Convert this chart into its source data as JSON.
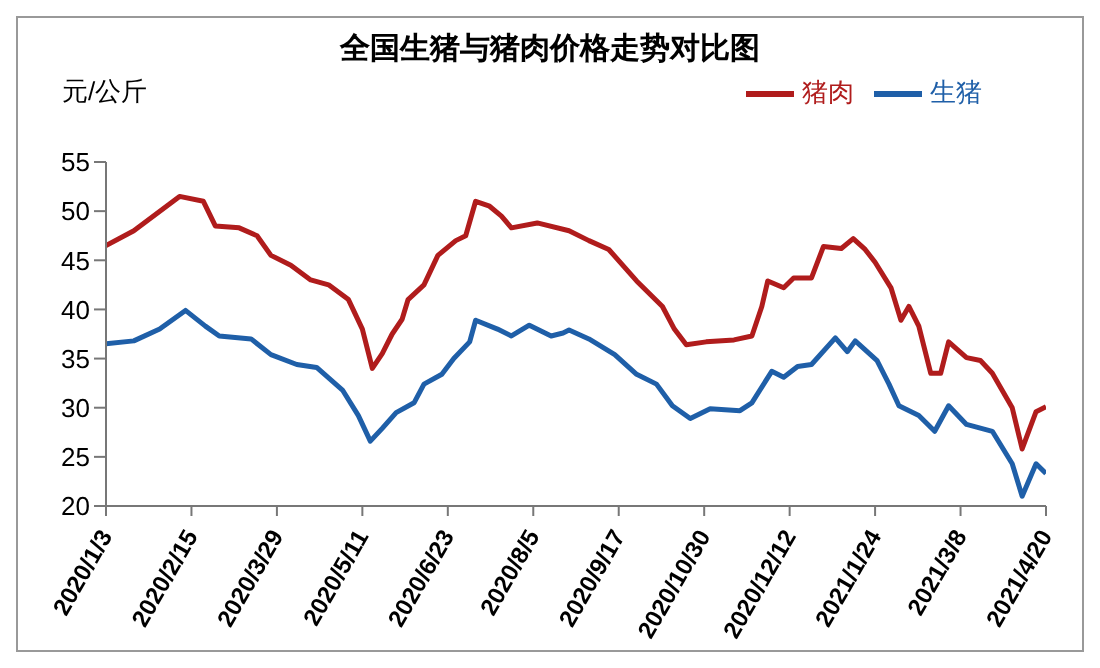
{
  "chart_data": {
    "type": "line",
    "title": "全国生猪与猪肉价格走势对比图",
    "ylabel": "元/公斤",
    "xlim": [
      "2020-01-03",
      "2021-04-20"
    ],
    "xticks": [
      {
        "value": "2020-01-03",
        "label": "2020/1/3"
      },
      {
        "value": "2020-02-15",
        "label": "2020/2/15"
      },
      {
        "value": "2020-03-29",
        "label": "2020/3/29"
      },
      {
        "value": "2020-05-11",
        "label": "2020/5/11"
      },
      {
        "value": "2020-06-23",
        "label": "2020/6/23"
      },
      {
        "value": "2020-08-05",
        "label": "2020/8/5"
      },
      {
        "value": "2020-09-17",
        "label": "2020/9/17"
      },
      {
        "value": "2020-10-30",
        "label": "2020/10/30"
      },
      {
        "value": "2020-12-12",
        "label": "2020/12/12"
      },
      {
        "value": "2021-01-24",
        "label": "2021/1/24"
      },
      {
        "value": "2021-03-08",
        "label": "2021/3/8"
      },
      {
        "value": "2021-04-20",
        "label": "2021/4/20"
      }
    ],
    "ylim": [
      20,
      55
    ],
    "yticks": [
      20,
      25,
      30,
      35,
      40,
      45,
      50,
      55
    ],
    "grid": false,
    "legend": "top right",
    "marker": "none",
    "line_style": "solid",
    "series": [
      {
        "name": "生猪",
        "color": "#1f5fa8",
        "x": [
          "2020-01-03",
          "2020-01-17",
          "2020-01-30",
          "2020-02-12",
          "2020-02-22",
          "2020-02-29",
          "2020-03-16",
          "2020-03-26",
          "2020-04-08",
          "2020-04-18",
          "2020-05-01",
          "2020-05-09",
          "2020-05-15",
          "2020-05-21",
          "2020-05-28",
          "2020-06-06",
          "2020-06-11",
          "2020-06-20",
          "2020-06-26",
          "2020-07-04",
          "2020-07-07",
          "2020-07-18",
          "2020-07-25",
          "2020-08-03",
          "2020-08-14",
          "2020-08-20",
          "2020-08-23",
          "2020-09-02",
          "2020-09-15",
          "2020-09-26",
          "2020-10-06",
          "2020-10-14",
          "2020-10-23",
          "2020-11-02",
          "2020-11-17",
          "2020-11-23",
          "2020-12-03",
          "2020-12-09",
          "2020-12-16",
          "2020-12-23",
          "2021-01-04",
          "2021-01-10",
          "2021-01-14",
          "2021-01-25",
          "2021-01-31",
          "2021-02-05",
          "2021-02-15",
          "2021-02-23",
          "2021-03-02",
          "2021-03-11",
          "2021-03-24",
          "2021-04-03",
          "2021-04-08",
          "2021-04-15",
          "2021-04-20"
        ],
        "values": [
          36.5,
          36.8,
          38,
          39.9,
          38.3,
          37.3,
          37,
          35.4,
          34.4,
          34.1,
          31.8,
          29.2,
          26.6,
          27.9,
          29.5,
          30.5,
          32.4,
          33.4,
          35,
          36.7,
          38.9,
          38,
          37.3,
          38.4,
          37.3,
          37.6,
          37.9,
          37,
          35.4,
          33.4,
          32.4,
          30.2,
          28.9,
          29.9,
          29.7,
          30.5,
          33.7,
          33.1,
          34.2,
          34.4,
          37.1,
          35.7,
          36.8,
          34.8,
          32.4,
          30.2,
          29.2,
          27.6,
          30.2,
          28.3,
          27.6,
          24.3,
          21,
          24.3,
          23.3
        ]
      },
      {
        "name": "猪肉",
        "color": "#b01c1c",
        "x": [
          "2020-01-03",
          "2020-01-17",
          "2020-02-09",
          "2020-02-21",
          "2020-02-27",
          "2020-03-10",
          "2020-03-19",
          "2020-03-26",
          "2020-04-05",
          "2020-04-15",
          "2020-04-24",
          "2020-05-04",
          "2020-05-11",
          "2020-05-16",
          "2020-05-21",
          "2020-05-26",
          "2020-05-31",
          "2020-06-03",
          "2020-06-11",
          "2020-06-18",
          "2020-06-27",
          "2020-07-02",
          "2020-07-07",
          "2020-07-14",
          "2020-07-20",
          "2020-07-25",
          "2020-08-07",
          "2020-08-23",
          "2020-09-02",
          "2020-09-12",
          "2020-09-26",
          "2020-10-09",
          "2020-10-15",
          "2020-10-21",
          "2020-10-31",
          "2020-11-14",
          "2020-11-23",
          "2020-11-28",
          "2020-12-01",
          "2020-12-09",
          "2020-12-14",
          "2020-12-23",
          "2020-12-29",
          "2021-01-07",
          "2021-01-13",
          "2021-01-19",
          "2021-01-24",
          "2021-02-01",
          "2021-02-06",
          "2021-02-10",
          "2021-02-15",
          "2021-02-21",
          "2021-02-26",
          "2021-03-02",
          "2021-03-11",
          "2021-03-18",
          "2021-03-24",
          "2021-04-03",
          "2021-04-08",
          "2021-04-15",
          "2021-04-20"
        ],
        "values": [
          46.5,
          48,
          51.5,
          51,
          48.5,
          48.3,
          47.5,
          45.5,
          44.5,
          43,
          42.5,
          41,
          38,
          34,
          35.5,
          37.5,
          39,
          41,
          42.5,
          45.5,
          47,
          47.5,
          51,
          50.5,
          49.5,
          48.3,
          48.8,
          48,
          47,
          46.1,
          42.9,
          40.3,
          38,
          36.4,
          36.7,
          36.9,
          37.3,
          40.3,
          42.9,
          42.2,
          43.2,
          43.2,
          46.4,
          46.2,
          47.2,
          46.1,
          44.8,
          42.2,
          38.9,
          40.3,
          38.3,
          33.5,
          33.5,
          36.7,
          35.1,
          34.8,
          33.5,
          30,
          25.8,
          29.6,
          30.1
        ]
      }
    ]
  }
}
